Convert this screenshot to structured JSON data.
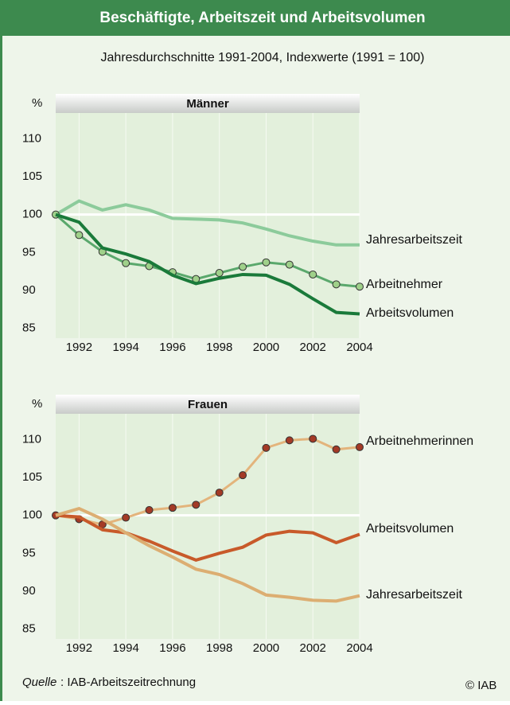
{
  "header": {
    "title": "Beschäftigte, Arbeitszeit und Arbeitsvolumen",
    "subtitle": "Jahresdurchschnitte 1991-2004, Indexwerte (1991 = 100)"
  },
  "chart_data": [
    {
      "type": "line",
      "title": "Männer",
      "y_unit": "%",
      "x": [
        1991,
        1992,
        1993,
        1994,
        1995,
        1996,
        1997,
        1998,
        1999,
        2000,
        2001,
        2002,
        2003,
        2004
      ],
      "xlim": [
        1991,
        2004
      ],
      "xticks": [
        1992,
        1994,
        1996,
        1998,
        2000,
        2002,
        2004
      ],
      "ylim": [
        83.7,
        113.4
      ],
      "yticks": [
        85,
        90,
        95,
        100,
        105,
        110
      ],
      "reference_line": 100,
      "grid": true,
      "series": [
        {
          "name": "Jahresarbeitszeit",
          "color": "#8ccb9b",
          "markers": false,
          "values": [
            100,
            101.8,
            100.6,
            101.3,
            100.6,
            99.5,
            99.4,
            99.3,
            98.9,
            98.1,
            97.2,
            96.5,
            96.0,
            96.0
          ]
        },
        {
          "name": "Arbeitnehmer",
          "color": "#5aa86c",
          "markers": true,
          "marker_color": "#9fd08a",
          "values": [
            100,
            97.3,
            95.1,
            93.6,
            93.2,
            92.4,
            91.5,
            92.3,
            93.1,
            93.7,
            93.4,
            92.1,
            90.8,
            90.5
          ]
        },
        {
          "name": "Arbeitsvolumen",
          "color": "#1a7a3a",
          "markers": false,
          "values": [
            100,
            99.0,
            95.6,
            94.8,
            93.8,
            92.0,
            90.9,
            91.6,
            92.1,
            92.0,
            90.8,
            88.9,
            87.1,
            86.9
          ]
        }
      ]
    },
    {
      "type": "line",
      "title": "Frauen",
      "y_unit": "%",
      "x": [
        1991,
        1992,
        1993,
        1994,
        1995,
        1996,
        1997,
        1998,
        1999,
        2000,
        2001,
        2002,
        2003,
        2004
      ],
      "xlim": [
        1991,
        2004
      ],
      "xticks": [
        1992,
        1994,
        1996,
        1998,
        2000,
        2002,
        2004
      ],
      "ylim": [
        83.7,
        113.4
      ],
      "yticks": [
        85,
        90,
        95,
        100,
        105,
        110
      ],
      "reference_line": 100,
      "grid": true,
      "series": [
        {
          "name": "Arbeitnehmerinnen",
          "color": "#e3b47c",
          "markers": true,
          "marker_color": "#a33a26",
          "values": [
            100,
            99.5,
            98.8,
            99.7,
            100.7,
            101.0,
            101.4,
            103.0,
            105.3,
            108.9,
            109.9,
            110.1,
            108.7,
            109.0
          ]
        },
        {
          "name": "Arbeitsvolumen",
          "color": "#c85a2a",
          "markers": false,
          "values": [
            100,
            99.8,
            98.1,
            97.7,
            96.6,
            95.3,
            94.1,
            95.0,
            95.8,
            97.4,
            97.9,
            97.7,
            96.4,
            97.5
          ]
        },
        {
          "name": "Jahresarbeitszeit",
          "color": "#dcae72",
          "markers": false,
          "values": [
            100,
            100.9,
            99.5,
            97.7,
            96.0,
            94.5,
            92.9,
            92.2,
            91.0,
            89.5,
            89.2,
            88.8,
            88.7,
            89.4
          ]
        }
      ]
    }
  ],
  "footer": {
    "source_label": "Quelle",
    "source": ": IAB-Arbeitszeitrechnung",
    "copyright": "© IAB"
  }
}
